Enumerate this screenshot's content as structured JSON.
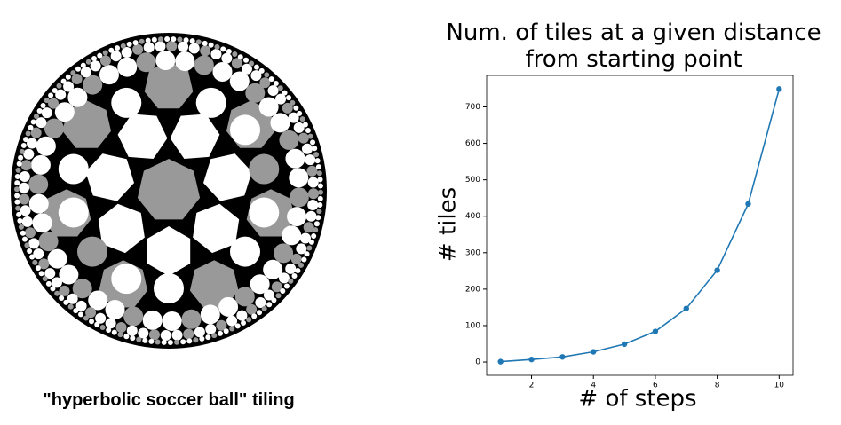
{
  "caption": "\"hyperbolic soccer ball\" tiling",
  "chart_data": {
    "type": "line",
    "title": "Num. of tiles at a given distance\nfrom starting point",
    "x_label": "# of steps",
    "y_label": "# tiles",
    "x": [
      1,
      2,
      3,
      4,
      5,
      6,
      7,
      8,
      9,
      10
    ],
    "series": [
      {
        "name": "tiles",
        "color": "#1f77b4",
        "values": [
          1,
          7,
          14,
          28,
          49,
          84,
          147,
          252,
          434,
          749
        ]
      }
    ],
    "xlim": [
      0.55,
      10.45
    ],
    "xticks": [
      2,
      4,
      6,
      8,
      10
    ],
    "ylim": [
      -36.4,
      786.4
    ],
    "yticks": [
      0,
      100,
      200,
      300,
      400,
      500,
      600,
      700
    ]
  }
}
